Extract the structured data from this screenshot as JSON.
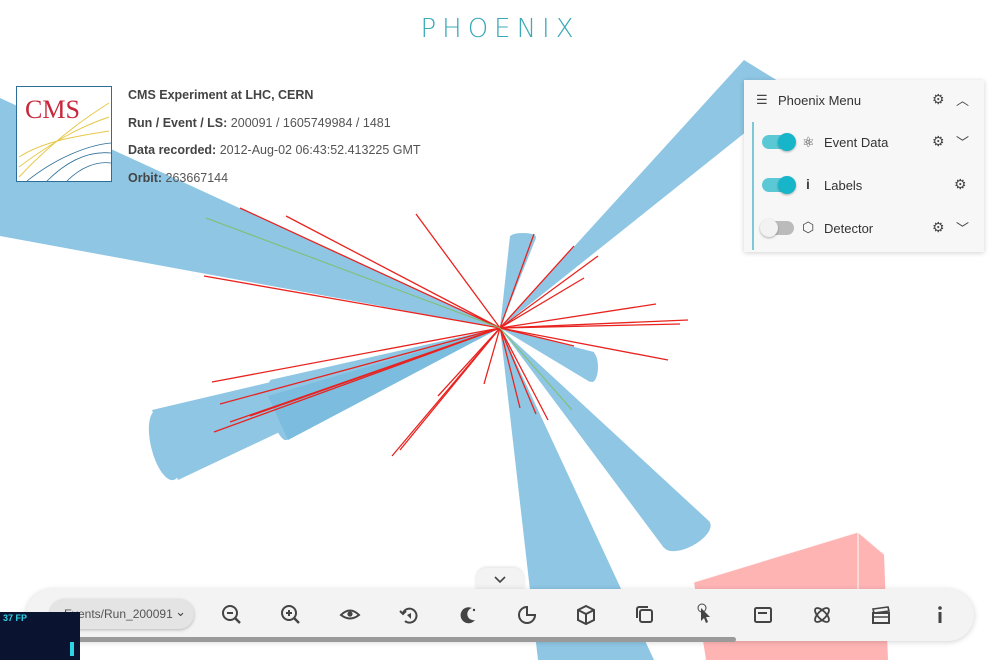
{
  "app": {
    "logo_text": "PHOENIX"
  },
  "experiment": {
    "logo_text": "CMS",
    "title": "CMS Experiment at LHC, CERN",
    "run_label": "Run / Event / LS:",
    "run_value": "200091 / 1605749984 / 1481",
    "date_label": "Data recorded:",
    "date_value": "2012-Aug-02 06:43:52.413225 GMT",
    "orbit_label": "Orbit:",
    "orbit_value": "263667144"
  },
  "menu": {
    "title": "Phoenix Menu",
    "items": [
      {
        "label": "Event Data",
        "enabled": true,
        "has_config": true,
        "expandable": true
      },
      {
        "label": "Labels",
        "enabled": true,
        "has_config": true,
        "expandable": false
      },
      {
        "label": "Detector",
        "enabled": false,
        "has_config": true,
        "expandable": true
      }
    ]
  },
  "toolbar": {
    "event_select_value": "Events/Run_200091",
    "buttons": [
      "zoom-out",
      "zoom-in",
      "view",
      "auto-rotate",
      "dark-theme",
      "geometry-clipping",
      "object-selection",
      "overlay-view",
      "info-panel-pick",
      "info-panel",
      "event-data-explorer",
      "animate",
      "info"
    ]
  },
  "fps": {
    "text": "37 FP"
  },
  "colors": {
    "jet": "#8ec6e4",
    "track": "#e8231f",
    "met": "#ffb4b4",
    "accent": "#16b5c9"
  }
}
